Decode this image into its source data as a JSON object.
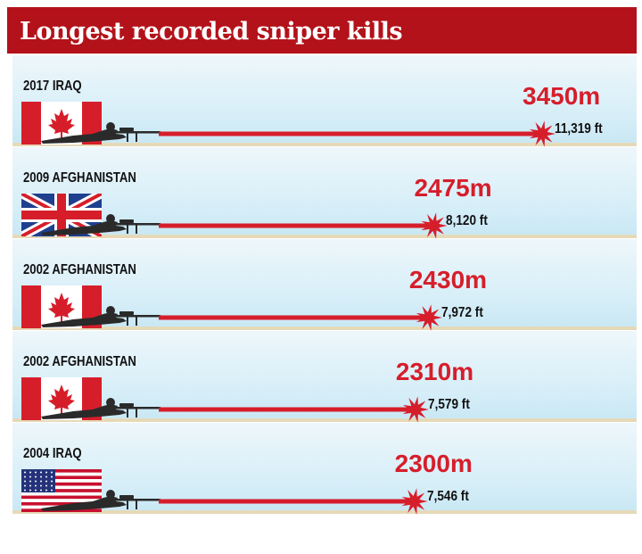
{
  "chart_data": {
    "type": "bar",
    "title": "Longest recorded sniper kills",
    "unit": "m",
    "categories": [
      "2017 IRAQ",
      "2009 AFGHANISTAN",
      "2002 AFGHANISTAN",
      "2002 AFGHANISTAN",
      "2004 IRAQ"
    ],
    "values": [
      3450,
      2475,
      2430,
      2310,
      2300
    ],
    "value_labels": [
      "3450m",
      "2475m",
      "2430m",
      "2310m",
      "2300m"
    ],
    "feet_labels": [
      "11,319 ft",
      "8,120 ft",
      "7,972 ft",
      "7,579 ft",
      "7,546 ft"
    ],
    "flags": [
      "canada",
      "united-kingdom",
      "canada",
      "canada",
      "united-states"
    ],
    "xlabel": "",
    "ylabel": ""
  },
  "colors": {
    "banner": "#b3121a",
    "laser": "#d61e2b",
    "value_text": "#d61e2b"
  }
}
